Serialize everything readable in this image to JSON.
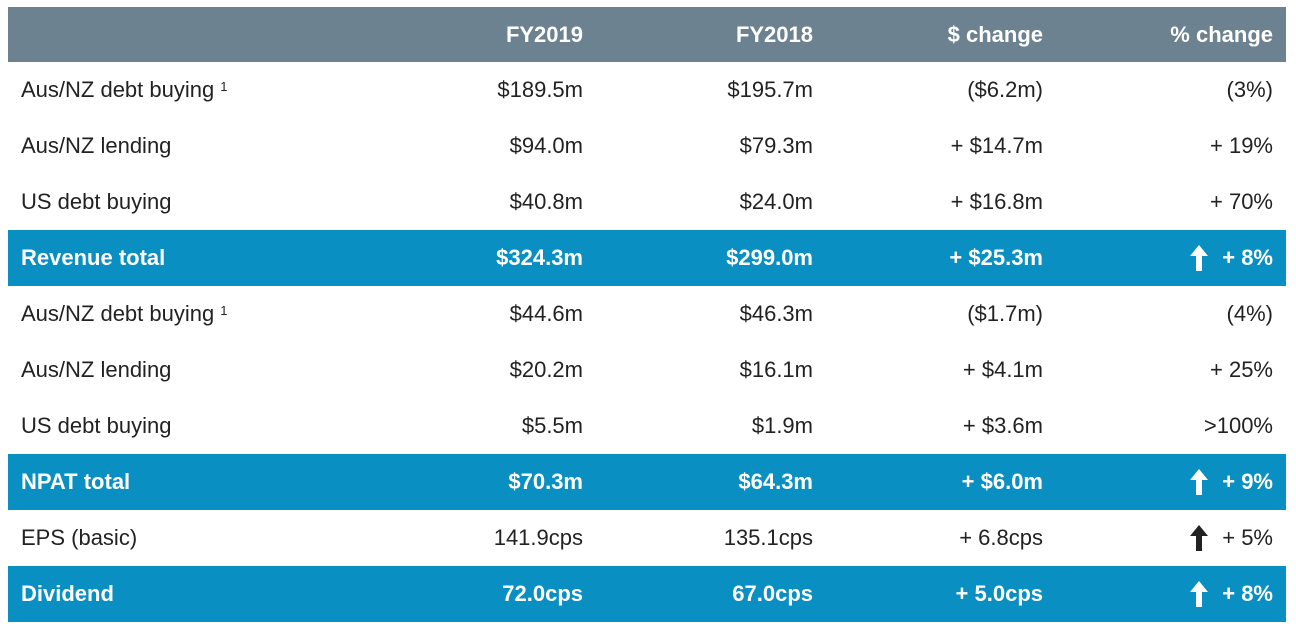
{
  "header": [
    "",
    "FY2019",
    "FY2018",
    "$ change",
    "% change"
  ],
  "rows": [
    {
      "label": "Aus/NZ debt buying",
      "sup": "1",
      "fy2019": "$189.5m",
      "fy2018": "$195.7m",
      "change": "($6.2m)",
      "pct": "(3%)",
      "arrow": false,
      "type": "plain"
    },
    {
      "label": "Aus/NZ lending",
      "sup": "",
      "fy2019": "$94.0m",
      "fy2018": "$79.3m",
      "change": "+ $14.7m",
      "pct": "+ 19%",
      "arrow": false,
      "type": "plain"
    },
    {
      "label": "US debt buying",
      "sup": "",
      "fy2019": "$40.8m",
      "fy2018": "$24.0m",
      "change": "+ $16.8m",
      "pct": "+ 70%",
      "arrow": false,
      "type": "plain"
    },
    {
      "label": "Revenue total",
      "sup": "",
      "fy2019": "$324.3m",
      "fy2018": "$299.0m",
      "change": "+ $25.3m",
      "pct": "+ 8%",
      "arrow": true,
      "type": "total"
    },
    {
      "label": "Aus/NZ debt buying",
      "sup": "1",
      "fy2019": "$44.6m",
      "fy2018": "$46.3m",
      "change": "($1.7m)",
      "pct": "(4%)",
      "arrow": false,
      "type": "plain"
    },
    {
      "label": "Aus/NZ lending",
      "sup": "",
      "fy2019": "$20.2m",
      "fy2018": "$16.1m",
      "change": "+ $4.1m",
      "pct": "+ 25%",
      "arrow": false,
      "type": "plain"
    },
    {
      "label": "US debt buying",
      "sup": "",
      "fy2019": "$5.5m",
      "fy2018": "$1.9m",
      "change": "+ $3.6m",
      "pct": ">100%",
      "arrow": false,
      "type": "plain"
    },
    {
      "label": "NPAT total",
      "sup": "",
      "fy2019": "$70.3m",
      "fy2018": "$64.3m",
      "change": "+ $6.0m",
      "pct": "+ 9%",
      "arrow": true,
      "type": "total"
    },
    {
      "label": "EPS (basic)",
      "sup": "",
      "fy2019": "141.9cps",
      "fy2018": "135.1cps",
      "change": "+ 6.8cps",
      "pct": "+ 5%",
      "arrow": true,
      "type": "plain"
    },
    {
      "label": "Dividend",
      "sup": "",
      "fy2019": "72.0cps",
      "fy2018": "67.0cps",
      "change": "+ 5.0cps",
      "pct": "+ 8%",
      "arrow": true,
      "type": "total"
    }
  ],
  "icons": {
    "arrow": "up-arrow-icon"
  },
  "colors": {
    "header_bg": "#6d8291",
    "total_bg": "#0a8fc2",
    "plain_text": "#222222"
  }
}
